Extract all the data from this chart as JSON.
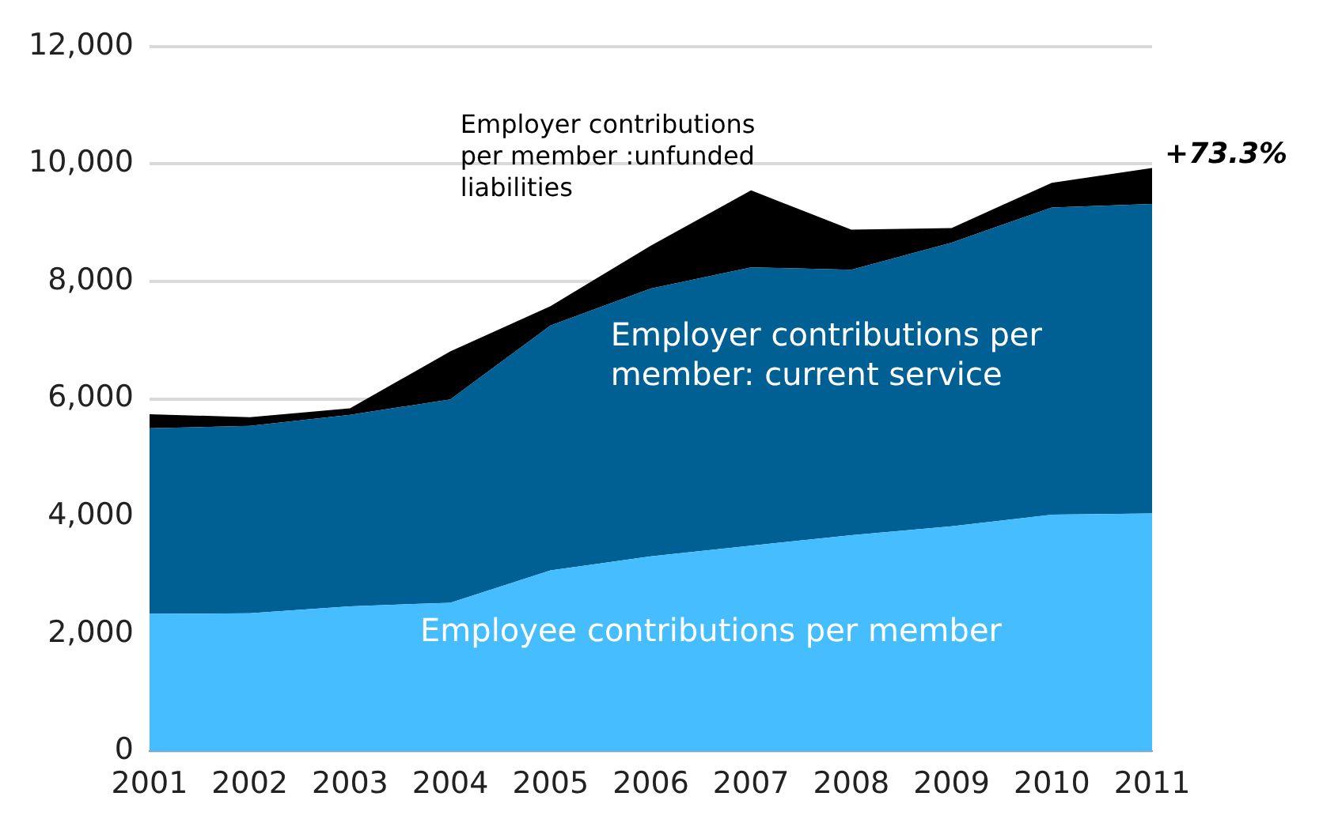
{
  "chart_data": {
    "type": "area",
    "stacked": true,
    "grid": "y",
    "legend": false,
    "categories": [
      "2001",
      "2002",
      "2003",
      "2004",
      "2005",
      "2006",
      "2007",
      "2008",
      "2009",
      "2010",
      "2011"
    ],
    "series": [
      {
        "name": "Employee contributions per member",
        "color": "#45bdfe",
        "values": [
          2340,
          2350,
          2470,
          2530,
          3080,
          3320,
          3500,
          3680,
          3830,
          4030,
          4050
        ]
      },
      {
        "name": "Employer contributions per member: current service",
        "color": "#006094",
        "values": [
          3160,
          3190,
          3260,
          3460,
          4170,
          4560,
          4740,
          4520,
          4830,
          5230,
          5270
        ]
      },
      {
        "name": "Employer contributions per member :unfunded liabilities",
        "color": "#000000",
        "values": [
          240,
          150,
          110,
          820,
          330,
          730,
          1310,
          680,
          250,
          420,
          610
        ]
      }
    ],
    "ylim": [
      0,
      12000
    ],
    "yticks": [
      0,
      {
        "value": 2000,
        "label": "2,000"
      },
      {
        "value": 4000,
        "label": "4,000"
      },
      {
        "value": 6000,
        "label": "6,000"
      },
      {
        "value": 8000,
        "label": "8,000"
      },
      {
        "value": 10000,
        "label": "10,000"
      },
      {
        "value": 12000,
        "label": "12,000"
      }
    ],
    "annotations": [
      "+73.3%"
    ]
  }
}
